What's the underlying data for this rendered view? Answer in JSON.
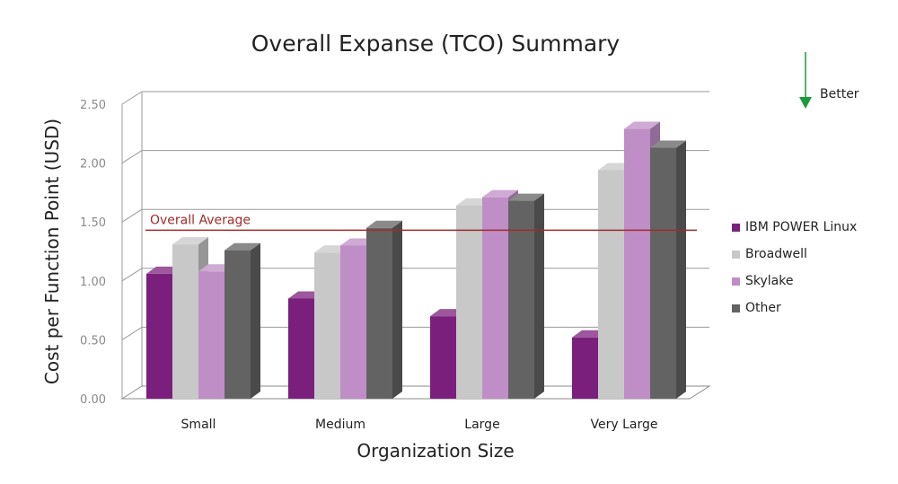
{
  "chart_data": {
    "type": "bar",
    "title": "Overall Expanse (TCO) Summary",
    "xlabel": "Organization Size",
    "ylabel": "Cost per Function Point (USD)",
    "categories": [
      "Small",
      "Medium",
      "Large",
      "Very Large"
    ],
    "yticks": [
      "0.00",
      "0.50",
      "1.00",
      "1.50",
      "2.00",
      "2.50"
    ],
    "ylim": [
      0,
      2.5
    ],
    "series": [
      {
        "name": "IBM POWER Linux",
        "color": "#7b1f7c",
        "values": [
          1.06,
          0.85,
          0.7,
          0.52
        ]
      },
      {
        "name": "Broadwell",
        "color": "#c8c8c8",
        "values": [
          1.31,
          1.24,
          1.64,
          1.94
        ]
      },
      {
        "name": "Skylake",
        "color": "#bf8ec6",
        "values": [
          1.08,
          1.3,
          1.71,
          2.29
        ]
      },
      {
        "name": "Other",
        "color": "#636363",
        "values": [
          1.26,
          1.45,
          1.68,
          2.13
        ]
      }
    ],
    "reference_line": {
      "label": "Overall Average",
      "value": 1.43,
      "color": "#a12a2a"
    },
    "annotation": {
      "text": "Better",
      "direction": "down",
      "color": "#1a9a3a"
    },
    "legend_position": "right",
    "grid": true
  }
}
